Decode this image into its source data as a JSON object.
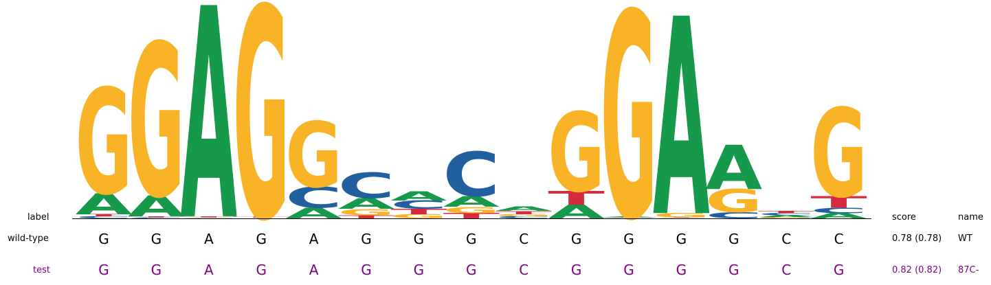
{
  "headers": {
    "label": "label",
    "score": "score",
    "name": "name"
  },
  "colors": {
    "A": "#16994a",
    "C": "#215f9e",
    "G": "#f8b327",
    "T": "#d82a3f",
    "wt_text": "#000000",
    "test_text": "#800080"
  },
  "logo": {
    "max_bits": 2,
    "positions": [
      {
        "A": 0.2,
        "C": 0.02,
        "G": 1.0,
        "T": 0.02
      },
      {
        "A": 0.2,
        "C": 0.01,
        "G": 1.45,
        "T": 0.01
      },
      {
        "A": 2.0,
        "C": 0.005,
        "G": 0.005,
        "T": 0.01
      },
      {
        "A": 0.003,
        "C": 0.003,
        "G": 2.0,
        "T": 0.01
      },
      {
        "A": 0.1,
        "C": 0.2,
        "G": 0.62,
        "T": 0.0
      },
      {
        "A": 0.1,
        "C": 0.24,
        "G": 0.06,
        "T": 0.03
      },
      {
        "A": 0.09,
        "C": 0.08,
        "G": 0.04,
        "T": 0.05
      },
      {
        "A": 0.1,
        "C": 0.42,
        "G": 0.06,
        "T": 0.05
      },
      {
        "A": 0.04,
        "C": 0.02,
        "G": 0.02,
        "T": 0.03
      },
      {
        "A": 0.13,
        "C": 0.0,
        "G": 0.75,
        "T": 0.13
      },
      {
        "A": 0.01,
        "C": 0.005,
        "G": 1.95,
        "T": 0.005
      },
      {
        "A": 1.87,
        "C": 0.005,
        "G": 0.04,
        "T": 0.005
      },
      {
        "A": 0.42,
        "C": 0.06,
        "G": 0.22,
        "T": 0.0
      },
      {
        "A": 0.02,
        "C": 0.02,
        "G": 0.01,
        "T": 0.02
      },
      {
        "A": 0.05,
        "C": 0.05,
        "G": 0.84,
        "T": 0.11
      }
    ]
  },
  "rows": [
    {
      "label": "wild-type",
      "sequence": [
        "G",
        "G",
        "A",
        "G",
        "A",
        "G",
        "G",
        "G",
        "C",
        "G",
        "G",
        "G",
        "G",
        "C",
        "C"
      ],
      "score": "0.78 (0.78)",
      "name": "WT"
    },
    {
      "label": "test",
      "sequence": [
        "G",
        "G",
        "A",
        "G",
        "A",
        "G",
        "G",
        "G",
        "C",
        "G",
        "G",
        "G",
        "G",
        "C",
        "G"
      ],
      "score": "0.82 (0.82)",
      "name": "87C-"
    }
  ]
}
